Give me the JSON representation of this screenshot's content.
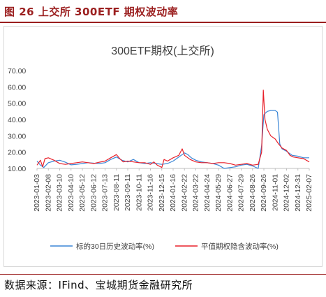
{
  "header": {
    "figure_title": "图 26 上交所 300ETF 期权波动率"
  },
  "footer": {
    "source": "数据来源：IFind、宝城期货金融研究所"
  },
  "colors": {
    "accent": "#9b1f1f",
    "hv_series": "#3a86d6",
    "iv_series": "#e8202a"
  },
  "chart_data": {
    "type": "line",
    "title": "300ETF期权(上交所)",
    "xlabel": "",
    "ylabel": "",
    "ylim": [
      10,
      70
    ],
    "yticks": [
      "70.00",
      "60.00",
      "50.00",
      "40.00",
      "30.00",
      "20.00",
      "10.00"
    ],
    "xticks": [
      "2023-01-03",
      "2023-02-08",
      "2023-03-10",
      "2023-04-10",
      "2023-05-12",
      "2023-06-12",
      "2023-07-13",
      "2023-08-11",
      "2023-09-11",
      "2023-10-11",
      "2023-11-16",
      "2023-12-15",
      "2024-01-16",
      "2024-02-22",
      "2024-03-22",
      "2024-04-24",
      "2024-05-29",
      "2024-06-27",
      "2024-07-29",
      "2024-08-26",
      "2024-09-26",
      "2024-11-01",
      "2024-12-02",
      "2024-12-31",
      "2025-02-07"
    ],
    "grid": false,
    "legend_position": "bottom",
    "series": [
      {
        "name": "标的30日历史波动率(%)",
        "color": "#3a86d6",
        "points": [
          [
            0,
            14.5
          ],
          [
            0.3,
            12.0
          ],
          [
            0.6,
            10.6
          ],
          [
            1.0,
            13.5
          ],
          [
            1.5,
            14.5
          ],
          [
            2.0,
            15.0
          ],
          [
            2.5,
            13.8
          ],
          [
            3.0,
            12.2
          ],
          [
            3.5,
            12.5
          ],
          [
            4.0,
            13.0
          ],
          [
            4.5,
            13.5
          ],
          [
            5.0,
            13.2
          ],
          [
            5.5,
            13.0
          ],
          [
            6.0,
            13.5
          ],
          [
            6.5,
            15.5
          ],
          [
            7.0,
            17.0
          ],
          [
            7.5,
            15.0
          ],
          [
            8.0,
            14.0
          ],
          [
            8.5,
            15.5
          ],
          [
            9.0,
            13.5
          ],
          [
            9.5,
            13.0
          ],
          [
            10.0,
            13.5
          ],
          [
            10.5,
            13.0
          ],
          [
            11.0,
            12.5
          ],
          [
            11.5,
            13.0
          ],
          [
            12.0,
            14.5
          ],
          [
            12.5,
            17.0
          ],
          [
            13.0,
            19.5
          ],
          [
            13.3,
            18.5
          ],
          [
            13.6,
            16.5
          ],
          [
            14.0,
            15.0
          ],
          [
            14.5,
            14.0
          ],
          [
            15.0,
            13.5
          ],
          [
            15.5,
            13.0
          ],
          [
            16.0,
            12.0
          ],
          [
            16.5,
            10.0
          ],
          [
            17.0,
            10.5
          ],
          [
            17.5,
            11.0
          ],
          [
            18.0,
            12.0
          ],
          [
            18.5,
            12.5
          ],
          [
            19.0,
            11.5
          ],
          [
            19.5,
            10.0
          ],
          [
            19.8,
            24.0
          ],
          [
            20.0,
            43.0
          ],
          [
            20.3,
            45.0
          ],
          [
            20.6,
            45.5
          ],
          [
            21.0,
            45.5
          ],
          [
            21.2,
            44.5
          ],
          [
            21.4,
            25.0
          ],
          [
            21.6,
            22.0
          ],
          [
            22.0,
            20.5
          ],
          [
            22.5,
            18.0
          ],
          [
            23.0,
            17.5
          ],
          [
            23.5,
            16.5
          ],
          [
            24.0,
            16.5
          ]
        ]
      },
      {
        "name": "平值期权隐含波动率(%)",
        "color": "#e8202a",
        "points": [
          [
            0,
            12.0
          ],
          [
            0.3,
            15.0
          ],
          [
            0.5,
            11.0
          ],
          [
            0.7,
            16.0
          ],
          [
            1.0,
            16.5
          ],
          [
            1.5,
            15.0
          ],
          [
            2.0,
            13.0
          ],
          [
            2.5,
            12.5
          ],
          [
            3.0,
            13.0
          ],
          [
            3.5,
            13.5
          ],
          [
            4.0,
            14.0
          ],
          [
            4.5,
            13.5
          ],
          [
            5.0,
            13.0
          ],
          [
            5.5,
            13.8
          ],
          [
            6.0,
            14.5
          ],
          [
            6.5,
            16.5
          ],
          [
            7.0,
            18.5
          ],
          [
            7.3,
            16.0
          ],
          [
            7.6,
            14.0
          ],
          [
            8.0,
            14.5
          ],
          [
            8.5,
            14.0
          ],
          [
            9.0,
            13.5
          ],
          [
            9.5,
            13.5
          ],
          [
            10.0,
            12.5
          ],
          [
            10.3,
            14.0
          ],
          [
            10.6,
            12.0
          ],
          [
            11.0,
            10.6
          ],
          [
            11.2,
            15.5
          ],
          [
            11.5,
            14.5
          ],
          [
            12.0,
            16.5
          ],
          [
            12.5,
            18.0
          ],
          [
            12.8,
            22.0
          ],
          [
            13.0,
            18.0
          ],
          [
            13.5,
            15.5
          ],
          [
            14.0,
            14.0
          ],
          [
            14.5,
            13.5
          ],
          [
            15.0,
            13.5
          ],
          [
            15.5,
            13.0
          ],
          [
            16.0,
            13.5
          ],
          [
            16.5,
            13.5
          ],
          [
            17.0,
            13.0
          ],
          [
            17.5,
            12.0
          ],
          [
            18.0,
            12.5
          ],
          [
            18.5,
            13.0
          ],
          [
            19.0,
            12.0
          ],
          [
            19.5,
            12.5
          ],
          [
            19.8,
            20.0
          ],
          [
            19.95,
            58.0
          ],
          [
            20.1,
            40.0
          ],
          [
            20.3,
            34.0
          ],
          [
            20.6,
            30.0
          ],
          [
            21.0,
            28.0
          ],
          [
            21.3,
            25.0
          ],
          [
            21.6,
            22.5
          ],
          [
            22.0,
            21.0
          ],
          [
            22.3,
            18.0
          ],
          [
            22.6,
            17.0
          ],
          [
            23.0,
            16.5
          ],
          [
            23.5,
            16.0
          ],
          [
            24.0,
            14.0
          ]
        ]
      }
    ]
  }
}
